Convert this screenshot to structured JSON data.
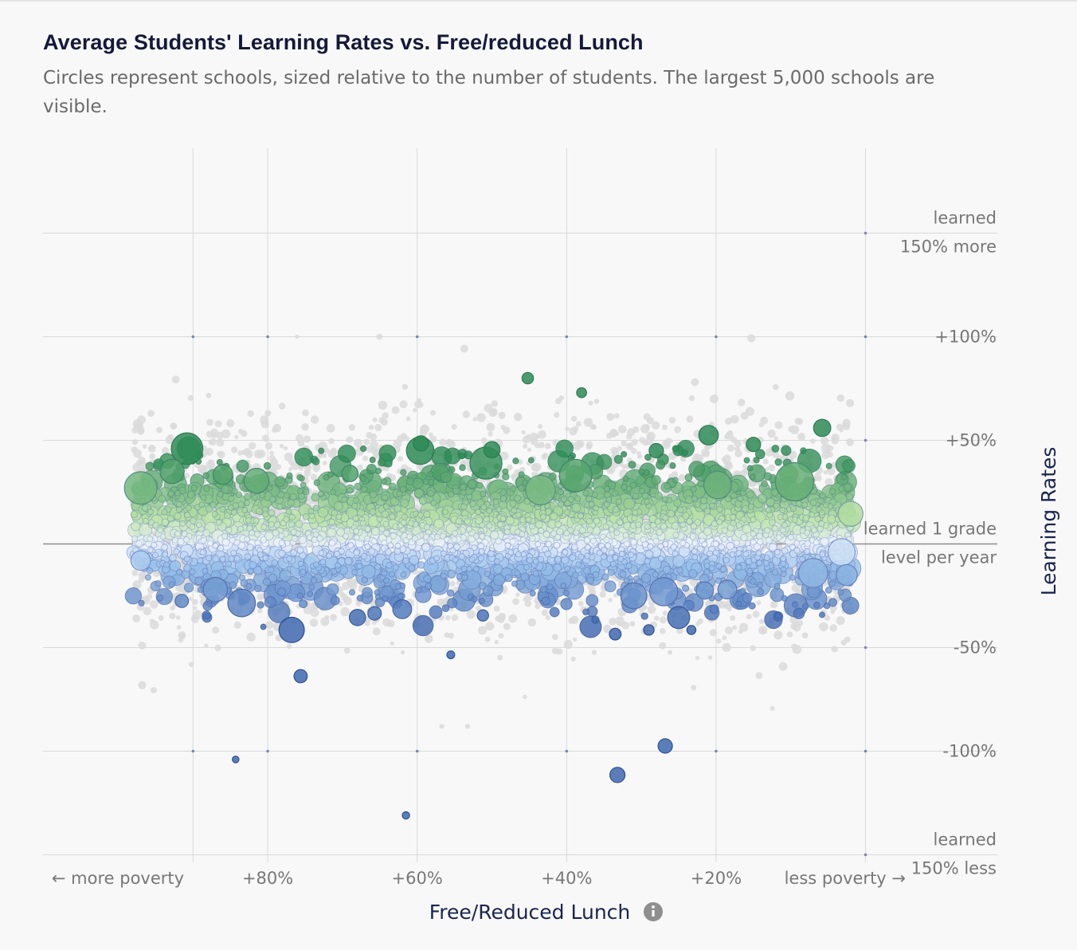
{
  "title": "Average Students' Learning Rates vs. Free/reduced Lunch",
  "subtitle": "Circles represent schools, sized relative to the number of students. The largest 5,000 schools are visible.",
  "colors": {
    "background": "#f8f8f8",
    "grid": "#d9d9d9",
    "baseline": "#8c8c8c",
    "background_points": "#dadada",
    "above_strong": "#2e8b57",
    "above_light": "#bde4a8",
    "neutral": "#eef2fb",
    "below_light": "#9cc4ec",
    "below_strong": "#3f68b0",
    "axis_label": "#1a2450",
    "tick_label": "#777777"
  },
  "chart_data": {
    "type": "scatter",
    "title": "Average Students' Learning Rates vs. Free/reduced Lunch",
    "subtitle": "Circles represent schools, sized relative to the number of students. The largest 5,000 schools are visible.",
    "xlabel": "Free/Reduced Lunch",
    "ylabel": "Learning Rates",
    "xlim": [
      100,
      0
    ],
    "ylim": [
      -150,
      150
    ],
    "x_ticks": [
      {
        "value": 90,
        "label": "← more poverty"
      },
      {
        "value": 80,
        "label": "+80%"
      },
      {
        "value": 60,
        "label": "+60%"
      },
      {
        "value": 40,
        "label": "+40%"
      },
      {
        "value": 20,
        "label": "+20%"
      },
      {
        "value": 0,
        "label": "less poverty →"
      }
    ],
    "y_ticks": [
      {
        "value": 150,
        "label": "learned\n150% more"
      },
      {
        "value": 100,
        "label": "+100%"
      },
      {
        "value": 50,
        "label": "+50%"
      },
      {
        "value": 0,
        "label": "learned 1 grade\nlevel per year"
      },
      {
        "value": -50,
        "label": "-50%"
      },
      {
        "value": -100,
        "label": "-100%"
      },
      {
        "value": -150,
        "label": "learned\n150% less"
      }
    ],
    "info_icon": "info-icon",
    "grid": true,
    "legend": "none",
    "highlighted_points": [
      {
        "x": 90.8,
        "y": 46.0,
        "size": 3400
      },
      {
        "x": 97.0,
        "y": 27.0,
        "size": 3600
      },
      {
        "x": 92.8,
        "y": 35.0,
        "size": 2000
      },
      {
        "x": 76.8,
        "y": -41.5,
        "size": 2200
      },
      {
        "x": 75.6,
        "y": -63.8,
        "size": 600
      },
      {
        "x": 59.6,
        "y": 45.0,
        "size": 2600
      },
      {
        "x": 59.5,
        "y": 48.5,
        "size": 800
      },
      {
        "x": 45.2,
        "y": 80.0,
        "size": 450
      },
      {
        "x": 38.0,
        "y": 73.0,
        "size": 330
      },
      {
        "x": 50.0,
        "y": 45.5,
        "size": 900
      },
      {
        "x": 50.8,
        "y": 39.0,
        "size": 3500
      },
      {
        "x": 38.8,
        "y": 33.0,
        "size": 3600
      },
      {
        "x": 43.5,
        "y": 26.0,
        "size": 3000
      },
      {
        "x": 21.0,
        "y": 52.5,
        "size": 1300
      },
      {
        "x": 19.8,
        "y": 28.5,
        "size": 2600
      },
      {
        "x": 9.5,
        "y": 30.0,
        "size": 5000
      },
      {
        "x": 5.8,
        "y": 56.0,
        "size": 1000
      },
      {
        "x": 15.0,
        "y": 48.0,
        "size": 700
      },
      {
        "x": 28.0,
        "y": 45.0,
        "size": 700
      },
      {
        "x": 33.5,
        "y": -43.5,
        "size": 480
      },
      {
        "x": 29.0,
        "y": -41.5,
        "size": 380
      },
      {
        "x": 25.0,
        "y": -35.5,
        "size": 1650
      },
      {
        "x": 23.3,
        "y": -41.5,
        "size": 280
      },
      {
        "x": 26.8,
        "y": -97.5,
        "size": 700
      },
      {
        "x": 33.2,
        "y": -111.5,
        "size": 780
      },
      {
        "x": 55.5,
        "y": -53.5,
        "size": 210
      },
      {
        "x": 61.5,
        "y": -131.0,
        "size": 180
      },
      {
        "x": 84.3,
        "y": -104.0,
        "size": 150
      },
      {
        "x": 51.2,
        "y": -34.5,
        "size": 430
      },
      {
        "x": 65.7,
        "y": -33.5,
        "size": 620
      },
      {
        "x": 62.0,
        "y": -31.5,
        "size": 1200
      },
      {
        "x": 68.0,
        "y": -35.5,
        "size": 900
      },
      {
        "x": 91.5,
        "y": -27.5,
        "size": 600
      },
      {
        "x": 7.0,
        "y": -14.0,
        "size": 2900
      },
      {
        "x": 3.2,
        "y": -4.0,
        "size": 2500
      },
      {
        "x": 2.0,
        "y": 14.5,
        "size": 2100
      },
      {
        "x": 2.5,
        "y": -15.0,
        "size": 1500
      },
      {
        "x": 27.0,
        "y": -23.0,
        "size": 2700
      },
      {
        "x": 31.0,
        "y": -25.0,
        "size": 2300
      },
      {
        "x": 18.5,
        "y": -22.0,
        "size": 1200
      },
      {
        "x": 21.5,
        "y": -22.5,
        "size": 1000
      },
      {
        "x": 83.5,
        "y": -28.5,
        "size": 2600
      },
      {
        "x": 87.0,
        "y": -22.0,
        "size": 2000
      },
      {
        "x": 97.0,
        "y": -8.0,
        "size": 1300
      },
      {
        "x": 69.0,
        "y": 34.0,
        "size": 900
      },
      {
        "x": 81.5,
        "y": 30.5,
        "size": 2100
      },
      {
        "x": 86.0,
        "y": 33.5,
        "size": 1300
      }
    ]
  }
}
